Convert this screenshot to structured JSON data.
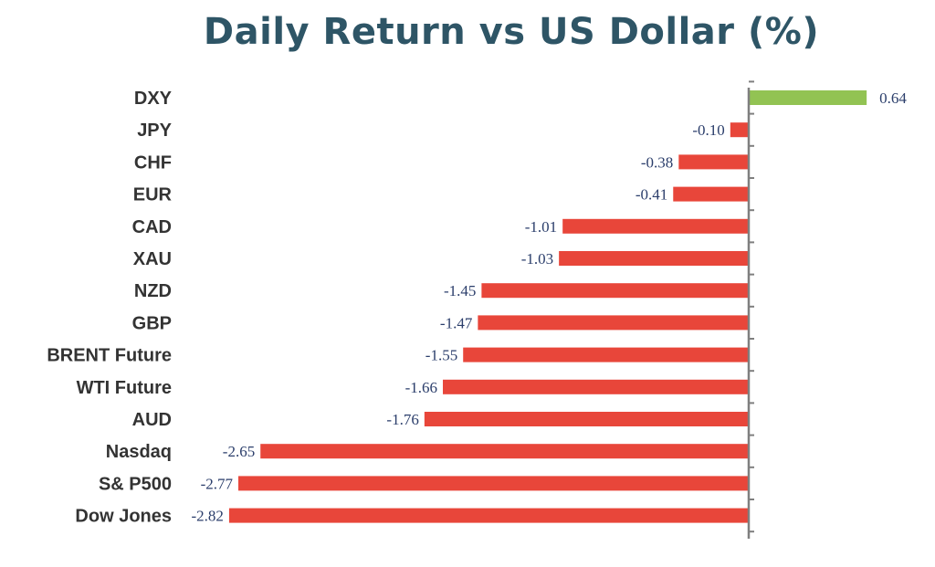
{
  "chart_data": {
    "type": "bar",
    "orientation": "horizontal",
    "title": "Daily Return vs US Dollar (%)",
    "categories": [
      "DXY",
      "JPY",
      "CHF",
      "EUR",
      "CAD",
      "XAU",
      "NZD",
      "GBP",
      "BRENT Future",
      "WTI Future",
      "AUD",
      "Nasdaq",
      "S& P500",
      "Dow Jones"
    ],
    "values": [
      0.64,
      -0.1,
      -0.38,
      -0.41,
      -1.01,
      -1.03,
      -1.45,
      -1.47,
      -1.55,
      -1.66,
      -1.76,
      -2.65,
      -2.77,
      -2.82
    ],
    "value_labels": [
      "0.64",
      "-0.10",
      "-0.38",
      "-0.41",
      "-1.01",
      "-1.03",
      "-1.45",
      "-1.47",
      "-1.55",
      "-1.66",
      "-1.76",
      "-2.65",
      "-2.77",
      "-2.82"
    ],
    "colors": {
      "positive": "#92c353",
      "negative": "#e8463a",
      "axis": "#7f7f7f"
    },
    "xlabel": "",
    "ylabel": "",
    "grid": false,
    "legend": "none"
  }
}
